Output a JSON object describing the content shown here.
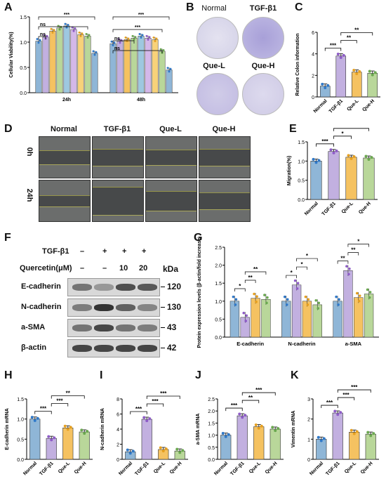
{
  "colors": {
    "normal": "#8fb6d7",
    "tgf": "#c2b0e0",
    "quel": "#f5c261",
    "queh": "#b9d79a",
    "pointN": "#2f78c8",
    "pointT": "#8e5cc7",
    "pointL": "#e6a020",
    "pointH": "#6aa84f"
  },
  "panel_labels": [
    "A",
    "B",
    "C",
    "D",
    "E",
    "F",
    "G",
    "H",
    "I",
    "J",
    "K"
  ],
  "panel_b": {
    "titles": [
      "Normal",
      "TGF-β1",
      "Que-L",
      "Que-H"
    ]
  },
  "panel_d": {
    "col_titles": [
      "Normal",
      "TGF-β1",
      "Que-L",
      "Que-H"
    ],
    "row_labels": [
      "0h",
      "24h"
    ]
  },
  "panel_f": {
    "tgf_label": "TGF-β1",
    "tgf_signs": [
      "–",
      "+",
      "+",
      "+"
    ],
    "quercetin_label": "Quercetin(μM)",
    "quercetin_vals": [
      "–",
      "–",
      "10",
      "20"
    ],
    "kda_label": "kDa",
    "proteins": [
      {
        "name": "E-cadherin",
        "kda": "120"
      },
      {
        "name": "N-cadherin",
        "kda": "130"
      },
      {
        "name": "a-SMA",
        "kda": "43"
      },
      {
        "name": "β-actin",
        "kda": "42"
      }
    ]
  },
  "chart_data": [
    {
      "id": "A",
      "type": "bar",
      "ylabel": "Cellular Viability(%)",
      "ylim": [
        0,
        1.5
      ],
      "yticks": [
        "0.0",
        "0.5",
        "1.0",
        "1.5"
      ],
      "categories": [
        "24h",
        "48h"
      ],
      "values": [
        [
          1.02,
          1.1,
          1.22,
          1.28,
          1.32,
          1.25,
          1.15,
          1.12,
          0.78
        ],
        [
          0.97,
          1.02,
          1.05,
          1.08,
          1.12,
          1.08,
          1.05,
          0.82,
          0.45
        ]
      ],
      "colors": [
        "#8fb6d7",
        "#c2b0e0",
        "#f5c261",
        "#b9d79a",
        "#9ec8e0",
        "#d4b8ea",
        "#f8d27a",
        "#b9d79a",
        "#8fb6d7"
      ],
      "sig": [
        "ns",
        "ns",
        "***",
        "ns",
        "ns",
        "***",
        "***"
      ]
    },
    {
      "id": "C",
      "type": "bar",
      "ylabel": "Relative Colon information",
      "ylim": [
        0,
        6
      ],
      "yticks": [
        "0",
        "2",
        "4",
        "6"
      ],
      "categories": [
        "Normal",
        "TGF-β1",
        "Que-L",
        "Que-H"
      ],
      "values": [
        1.0,
        3.8,
        2.3,
        2.2
      ],
      "sig": [
        "***",
        "**",
        "**"
      ]
    },
    {
      "id": "E",
      "type": "bar",
      "ylabel": "Migration(%)",
      "ylim": [
        0,
        1.5
      ],
      "yticks": [
        "0.0",
        "0.5",
        "1.0",
        "1.5"
      ],
      "categories": [
        "Normal",
        "TGF-β1",
        "Que-L",
        "Que-H"
      ],
      "values": [
        1.0,
        1.25,
        1.1,
        1.08
      ],
      "sig": [
        "***",
        "*",
        "*"
      ]
    },
    {
      "id": "G",
      "type": "bar",
      "ylabel": "Protein expression levels (β-actin/fold increase)",
      "ylim": [
        0,
        2.5
      ],
      "yticks": [
        "0.0",
        "0.5",
        "1.0",
        "1.5",
        "2.0",
        "2.5"
      ],
      "categories": [
        "E-cadherin",
        "N-cadherin",
        "a-SMA"
      ],
      "series": [
        {
          "values": [
            1.0,
            1.0,
            1.0
          ]
        },
        {
          "values": [
            0.55,
            1.45,
            1.85
          ]
        },
        {
          "values": [
            1.08,
            1.0,
            1.1
          ]
        },
        {
          "values": [
            1.05,
            0.9,
            1.2
          ]
        }
      ],
      "sig": [
        "*",
        "**",
        "**",
        "*",
        "*",
        "*",
        "**",
        "**",
        "*"
      ]
    },
    {
      "id": "H",
      "type": "bar",
      "ylabel": "E-cadherin mRNA",
      "ylim": [
        0,
        1.5
      ],
      "yticks": [
        "0.0",
        "0.5",
        "1.0",
        "1.5"
      ],
      "categories": [
        "Normal",
        "TGF-β1",
        "Que-L",
        "Que-H"
      ],
      "values": [
        1.0,
        0.52,
        0.78,
        0.68
      ],
      "sig": [
        "***",
        "***",
        "**"
      ]
    },
    {
      "id": "I",
      "type": "bar",
      "ylabel": "N-cadherin mRNA",
      "ylim": [
        0,
        8
      ],
      "yticks": [
        "0",
        "2",
        "4",
        "6",
        "8"
      ],
      "categories": [
        "Normal",
        "TGF-β1",
        "Que-L",
        "Que-H"
      ],
      "values": [
        1.0,
        5.3,
        1.3,
        1.1
      ],
      "sig": [
        "***",
        "***",
        "***"
      ]
    },
    {
      "id": "J",
      "type": "bar",
      "ylabel": "a-SMA mRNA",
      "ylim": [
        0,
        2.5
      ],
      "yticks": [
        "0.0",
        "0.5",
        "1.0",
        "1.5",
        "2.0",
        "2.5"
      ],
      "categories": [
        "Normal",
        "TGF-β1",
        "Que-L",
        "Que-H"
      ],
      "values": [
        1.0,
        1.8,
        1.35,
        1.25
      ],
      "sig": [
        "***",
        "**",
        "***"
      ]
    },
    {
      "id": "K",
      "type": "bar",
      "ylabel": "Vimentin mRNA",
      "ylim": [
        0,
        3
      ],
      "yticks": [
        "0",
        "1",
        "2",
        "3"
      ],
      "categories": [
        "Normal",
        "TGF-β1",
        "Que-L",
        "Que-H"
      ],
      "values": [
        1.0,
        2.3,
        1.35,
        1.25
      ],
      "sig": [
        "***",
        "***",
        "***"
      ]
    }
  ]
}
